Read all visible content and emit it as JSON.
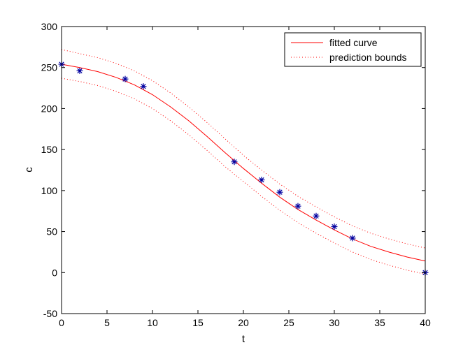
{
  "chart_data": {
    "type": "line",
    "title": "",
    "xlabel": "t",
    "ylabel": "c",
    "xlim": [
      0,
      40
    ],
    "ylim": [
      -50,
      300
    ],
    "grid": false,
    "legend_position": "top-right",
    "x_ticks": [
      0,
      5,
      10,
      15,
      20,
      25,
      30,
      35,
      40
    ],
    "y_ticks": [
      -50,
      0,
      50,
      100,
      150,
      200,
      250,
      300
    ],
    "data_points": {
      "marker": "*",
      "color": "#0000a0",
      "x": [
        0,
        2,
        7,
        9,
        19,
        22,
        24,
        26,
        28,
        30,
        32,
        40
      ],
      "y": [
        254,
        246,
        236,
        227,
        135,
        113,
        98,
        81,
        69,
        56,
        42,
        0
      ]
    },
    "series": [
      {
        "name": "fitted curve",
        "style": "solid",
        "color": "#ff0000",
        "x": [
          0,
          2,
          4,
          6,
          8,
          10,
          12,
          14,
          16,
          18,
          20,
          22,
          24,
          26,
          28,
          30,
          32,
          34,
          36,
          38,
          40
        ],
        "y": [
          254,
          250,
          245,
          238,
          229,
          217,
          202,
          185,
          166,
          146,
          127,
          109,
          92,
          77,
          64,
          52,
          41,
          32,
          25,
          19,
          14
        ]
      },
      {
        "name": "prediction bounds",
        "style": "dotted",
        "color": "#ff0000",
        "x": [
          0,
          2,
          4,
          6,
          8,
          10,
          12,
          14,
          16,
          18,
          20,
          22,
          24,
          26,
          28,
          30,
          32,
          34,
          36,
          38,
          40
        ],
        "y": [
          272,
          267,
          262,
          255,
          246,
          234,
          219,
          202,
          183,
          163,
          143,
          125,
          108,
          93,
          80,
          68,
          57,
          48,
          41,
          35,
          30
        ]
      },
      {
        "name": "",
        "style": "dotted",
        "color": "#ff0000",
        "x": [
          0,
          2,
          4,
          6,
          8,
          10,
          12,
          14,
          16,
          18,
          20,
          22,
          24,
          26,
          28,
          30,
          32,
          34,
          36,
          38,
          40
        ],
        "y": [
          237,
          233,
          228,
          221,
          212,
          200,
          185,
          168,
          149,
          129,
          111,
          93,
          76,
          61,
          48,
          36,
          25,
          16,
          9,
          3,
          -2
        ]
      }
    ]
  }
}
